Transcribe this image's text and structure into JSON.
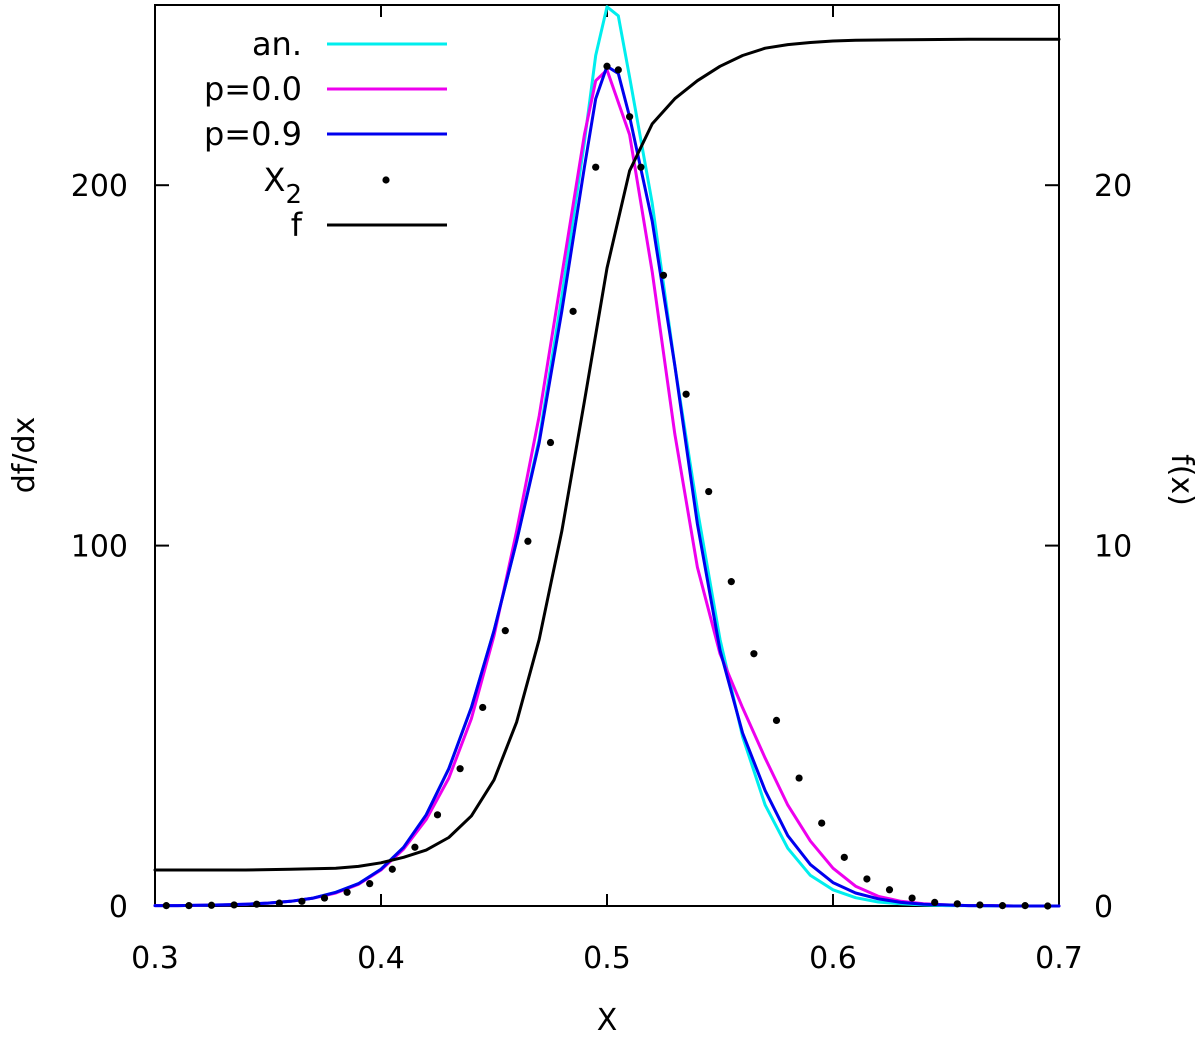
{
  "chart_data": {
    "type": "line",
    "xlabel": "X",
    "ylabel_left": "df/dx",
    "ylabel_right": "f(x)",
    "xlim": [
      0.3,
      0.7
    ],
    "ylim_left": [
      0,
      250
    ],
    "ylim_right": [
      0,
      25
    ],
    "grid": false,
    "legend_position": "top-left",
    "x_ticks": [
      "0.3",
      "0.4",
      "0.5",
      "0.6",
      "0.7"
    ],
    "y_ticks_left": [
      "0",
      "100",
      "200"
    ],
    "y_ticks_right": [
      "0",
      "10",
      "20"
    ],
    "series": [
      {
        "name": "an.",
        "style": "line",
        "axis": "left",
        "color": "#00eeee",
        "x": [
          0.3,
          0.31,
          0.32,
          0.33,
          0.34,
          0.35,
          0.36,
          0.37,
          0.38,
          0.39,
          0.4,
          0.41,
          0.42,
          0.43,
          0.44,
          0.45,
          0.46,
          0.47,
          0.48,
          0.49,
          0.495,
          0.5,
          0.505,
          0.51,
          0.52,
          0.53,
          0.54,
          0.55,
          0.56,
          0.57,
          0.58,
          0.59,
          0.6,
          0.61,
          0.62,
          0.63,
          0.64,
          0.65,
          0.66,
          0.67,
          0.68,
          0.69,
          0.7
        ],
        "y": [
          0.1,
          0.1,
          0.2,
          0.3,
          0.5,
          0.8,
          1.3,
          2.2,
          3.8,
          6.2,
          10.2,
          16.3,
          25.3,
          38.1,
          55.1,
          76.4,
          101.2,
          129.6,
          169.0,
          212.0,
          236.0,
          249.5,
          247.0,
          230.0,
          195.0,
          150.0,
          110.0,
          74.0,
          47.0,
          28.0,
          16.0,
          8.5,
          4.5,
          2.3,
          1.1,
          0.6,
          0.3,
          0.1,
          0.1,
          0.0,
          0.0,
          0.0,
          0.0
        ]
      },
      {
        "name": "p=0.0",
        "style": "line",
        "axis": "left",
        "color": "#ee00ee",
        "x": [
          0.3,
          0.31,
          0.32,
          0.33,
          0.34,
          0.35,
          0.36,
          0.37,
          0.38,
          0.39,
          0.4,
          0.41,
          0.42,
          0.43,
          0.44,
          0.45,
          0.46,
          0.47,
          0.48,
          0.49,
          0.495,
          0.5,
          0.51,
          0.52,
          0.53,
          0.54,
          0.55,
          0.56,
          0.57,
          0.58,
          0.59,
          0.6,
          0.61,
          0.62,
          0.63,
          0.64,
          0.65,
          0.66,
          0.67,
          0.68,
          0.69,
          0.7
        ],
        "y": [
          0.1,
          0.1,
          0.2,
          0.3,
          0.5,
          0.8,
          1.3,
          2.2,
          3.6,
          6.0,
          10.0,
          15.8,
          24.0,
          35.5,
          52.0,
          75.0,
          104.0,
          136.0,
          175.0,
          214.0,
          229.0,
          232.0,
          214.0,
          176.0,
          131.0,
          94.0,
          70.0,
          55.0,
          41.0,
          28.0,
          18.0,
          10.5,
          5.5,
          2.7,
          1.3,
          0.6,
          0.3,
          0.1,
          0.1,
          0.0,
          0.0,
          0.0
        ]
      },
      {
        "name": "p=0.9",
        "style": "line",
        "axis": "left",
        "color": "#0000ee",
        "x": [
          0.3,
          0.31,
          0.32,
          0.33,
          0.34,
          0.35,
          0.36,
          0.37,
          0.38,
          0.39,
          0.4,
          0.41,
          0.42,
          0.43,
          0.44,
          0.45,
          0.46,
          0.47,
          0.48,
          0.49,
          0.495,
          0.5,
          0.505,
          0.51,
          0.52,
          0.53,
          0.54,
          0.55,
          0.56,
          0.57,
          0.58,
          0.59,
          0.6,
          0.61,
          0.62,
          0.63,
          0.64,
          0.65,
          0.66,
          0.67,
          0.68,
          0.69,
          0.7
        ],
        "y": [
          0.1,
          0.1,
          0.2,
          0.3,
          0.5,
          0.8,
          1.3,
          2.2,
          3.8,
          6.2,
          10.2,
          16.3,
          25.3,
          38.1,
          55.1,
          76.4,
          101.2,
          128.6,
          165.0,
          205.0,
          224.0,
          233.0,
          231.0,
          219.0,
          190.0,
          150.0,
          106.0,
          71.0,
          48.0,
          32.0,
          19.5,
          11.5,
          6.5,
          3.6,
          2.0,
          1.0,
          0.5,
          0.3,
          0.1,
          0.1,
          0.0,
          0.0,
          0.0
        ]
      },
      {
        "name": "X",
        "name_subscript": "2",
        "style": "points",
        "axis": "left",
        "color": "#000000",
        "x": [
          0.305,
          0.315,
          0.325,
          0.335,
          0.345,
          0.355,
          0.365,
          0.375,
          0.385,
          0.395,
          0.405,
          0.415,
          0.425,
          0.435,
          0.445,
          0.455,
          0.465,
          0.475,
          0.485,
          0.495,
          0.5,
          0.505,
          0.51,
          0.515,
          0.525,
          0.535,
          0.545,
          0.555,
          0.565,
          0.575,
          0.585,
          0.595,
          0.605,
          0.615,
          0.625,
          0.635,
          0.645,
          0.655,
          0.665,
          0.675,
          0.685,
          0.695
        ],
        "y": [
          0.1,
          0.1,
          0.2,
          0.3,
          0.5,
          0.8,
          1.3,
          2.2,
          3.8,
          6.2,
          10.2,
          16.3,
          25.3,
          38.1,
          55.1,
          76.4,
          101.2,
          128.6,
          165.0,
          205.0,
          233.0,
          232.0,
          219.0,
          205.0,
          175.0,
          142.0,
          115.0,
          90.0,
          70.0,
          51.5,
          35.5,
          23.0,
          13.5,
          7.5,
          4.5,
          2.2,
          1.0,
          0.6,
          0.3,
          0.1,
          0.1,
          0.0
        ]
      },
      {
        "name": "f",
        "style": "line",
        "axis": "right",
        "color": "#000000",
        "x": [
          0.3,
          0.32,
          0.34,
          0.36,
          0.38,
          0.39,
          0.4,
          0.41,
          0.42,
          0.43,
          0.44,
          0.45,
          0.46,
          0.47,
          0.48,
          0.49,
          0.5,
          0.51,
          0.52,
          0.53,
          0.54,
          0.55,
          0.56,
          0.57,
          0.58,
          0.59,
          0.6,
          0.61,
          0.62,
          0.64,
          0.66,
          0.68,
          0.7
        ],
        "y": [
          1.0,
          1.0,
          1.0,
          1.02,
          1.05,
          1.1,
          1.2,
          1.35,
          1.55,
          1.9,
          2.5,
          3.5,
          5.1,
          7.4,
          10.4,
          14.0,
          17.7,
          20.4,
          21.7,
          22.4,
          22.9,
          23.3,
          23.6,
          23.8,
          23.9,
          23.96,
          24.0,
          24.02,
          24.03,
          24.04,
          24.05,
          24.05,
          24.05
        ]
      }
    ]
  }
}
